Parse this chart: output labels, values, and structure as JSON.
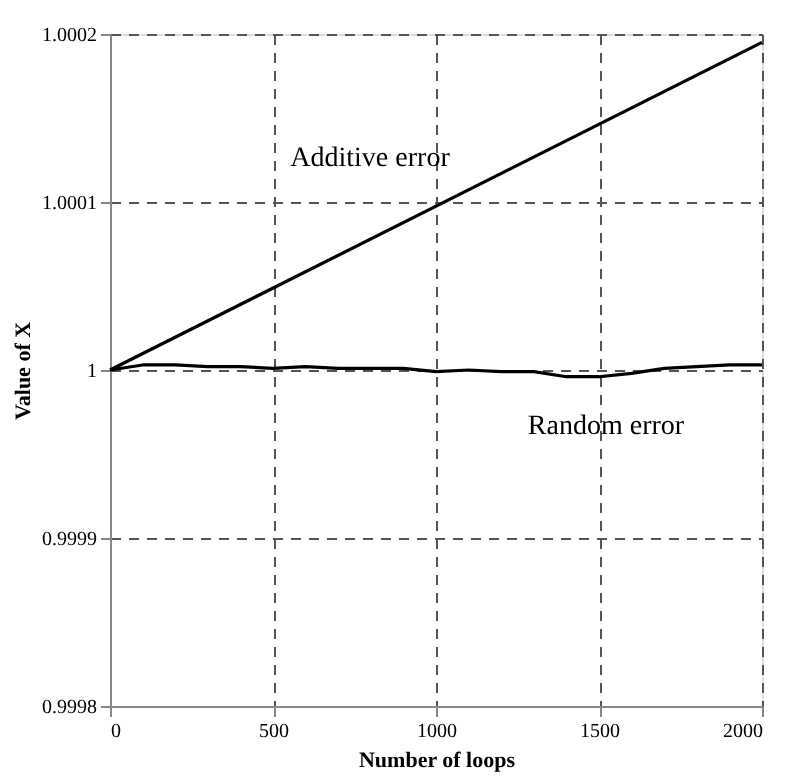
{
  "chart_data": {
    "type": "line",
    "xlabel": "Number of loops",
    "ylabel": "Value of X",
    "x": [
      0,
      100,
      200,
      300,
      400,
      500,
      600,
      700,
      800,
      900,
      1000,
      1100,
      1200,
      1300,
      1400,
      1500,
      1600,
      1700,
      1800,
      1900,
      2000
    ],
    "series": [
      {
        "color": "#000000",
        "x": [
          0,
          2000
        ],
        "values": [
          1,
          1.000195
        ]
      },
      {
        "color": "#000000",
        "values": [
          1,
          1.000003,
          1.000003,
          1.000002,
          1.000002,
          1.000001,
          1.000002,
          1.000001,
          1.000001,
          1.000001,
          0.999999,
          1,
          0.999999,
          0.999999,
          0.999996,
          0.999996,
          0.999998,
          1.000001,
          1.000002,
          1.000003,
          1.000003
        ]
      }
    ],
    "annotations": [
      "Additive error",
      "Random error"
    ],
    "xlim": [
      0,
      2000
    ],
    "xticks": [
      0,
      500,
      1000,
      1500,
      2000
    ],
    "ylim": [
      0.9998,
      1.0002
    ],
    "yticks": [
      0.9998,
      0.9999,
      1,
      1.0001,
      1.0002
    ],
    "grid": true,
    "line_style": "solid",
    "marker": "none"
  }
}
